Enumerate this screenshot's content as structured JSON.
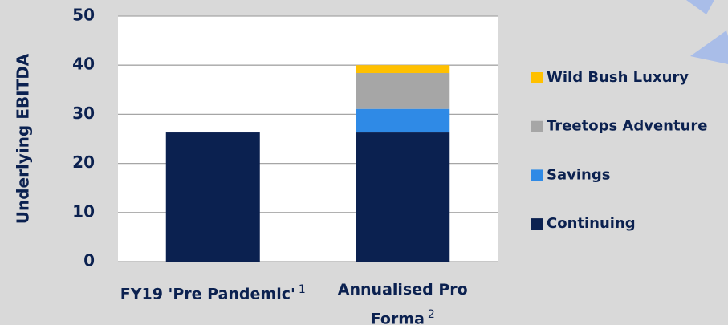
{
  "chart_data": {
    "type": "stacked_bar",
    "y_label": "Underlying EBITDA",
    "categories": [
      "FY19 'Pre Pandemic'",
      "Annualised Pro Forma"
    ],
    "category_notes": [
      "1",
      "2"
    ],
    "series": [
      {
        "name": "Continuing",
        "color": "#0b2150",
        "values": [
          26.3,
          26.3
        ]
      },
      {
        "name": "Savings",
        "color": "#2f8ae6",
        "values": [
          null,
          4.8
        ]
      },
      {
        "name": "Treetops Adventure",
        "color": "#a6a6a6",
        "values": [
          null,
          7.3
        ]
      },
      {
        "name": "Wild Bush Luxury",
        "color": "#ffc000",
        "values": [
          null,
          1.6
        ]
      }
    ],
    "ylim": [
      0,
      50
    ],
    "yticks": [
      0,
      10,
      20,
      30,
      40,
      50
    ],
    "grid": true,
    "legend": "right"
  }
}
